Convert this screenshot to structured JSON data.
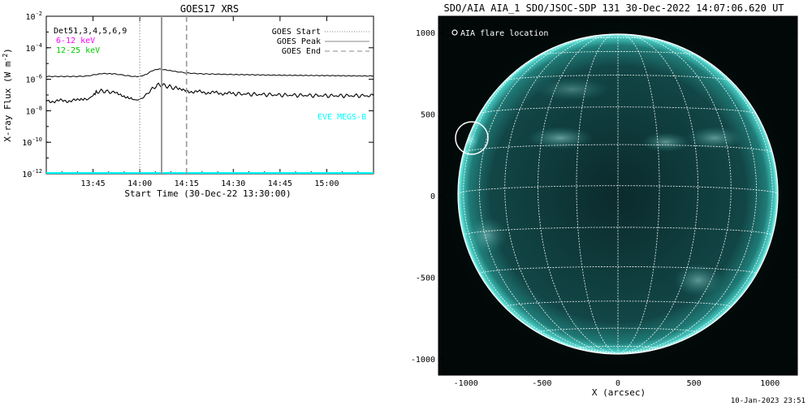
{
  "left_chart": {
    "title": "GOES17 XRS",
    "ylabel": "X-ray Flux (W m",
    "ylabel_sup": "-2",
    "ylabel_close": ")",
    "xlabel": "Start Time (30-Dec-22 13:30:00)",
    "ytick_base": "10",
    "y_exponents": [
      "-12",
      "-10",
      "-8",
      "-6",
      "-4",
      "-2"
    ],
    "xticks": [
      "13:45",
      "14:00",
      "14:15",
      "14:30",
      "14:45",
      "15:00"
    ],
    "detector_label": "Det51,3,4,5,6,9",
    "energy_labels": [
      {
        "text": "6-12 keV",
        "color": "#ff00ff"
      },
      {
        "text": "12-25 keV",
        "color": "#00c800"
      }
    ],
    "legend": [
      "GOES Start",
      "GOES Peak",
      "GOES End"
    ],
    "eve_label": "EVE MEGS-B",
    "eve_color": "#00ffff",
    "markers": {
      "start": "14:00",
      "peak": "14:07",
      "end": "14:15"
    }
  },
  "chart_data": [
    {
      "type": "line",
      "title": "GOES17 XRS",
      "xlabel": "Start Time (30-Dec-22 13:30:00)",
      "ylabel": "X-ray Flux (W m^-2)",
      "yscale": "log",
      "ylim": [
        1e-12,
        0.01
      ],
      "xlim": [
        "13:30",
        "15:15"
      ],
      "series": [
        {
          "name": "",
          "x": [
            "13:30",
            "13:40",
            "13:43",
            "13:46",
            "13:48",
            "13:52",
            "13:55",
            "13:58",
            "14:00",
            "14:02",
            "14:04",
            "14:06",
            "14:08",
            "14:12",
            "14:15",
            "14:20",
            "14:30",
            "14:45",
            "15:00",
            "15:15"
          ],
          "values": [
            1.5e-06,
            1.5e-06,
            1.6e-06,
            2e-06,
            2.3e-06,
            2.2e-06,
            1.8e-06,
            1.5e-06,
            1.5e-06,
            2e-06,
            3.5e-06,
            4.5e-06,
            4e-06,
            3e-06,
            2.5e-06,
            2.2e-06,
            2e-06,
            1.8e-06,
            1.7e-06,
            1.6e-06
          ]
        },
        {
          "name": "",
          "x": [
            "13:30",
            "13:40",
            "13:43",
            "13:45",
            "13:46",
            "13:48",
            "13:52",
            "13:55",
            "13:58",
            "14:00",
            "14:02",
            "14:04",
            "14:06",
            "14:08",
            "14:12",
            "14:15",
            "14:20",
            "14:30",
            "14:45",
            "15:00",
            "15:15"
          ],
          "values": [
            4e-08,
            4.5e-08,
            5e-08,
            9e-08,
            1.6e-07,
            1.8e-07,
            1.4e-07,
            7e-08,
            5e-08,
            5e-08,
            1e-07,
            2.5e-07,
            4.5e-07,
            4e-07,
            2.5e-07,
            1.8e-07,
            1.5e-07,
            1.2e-07,
            1e-07,
            9e-08,
            9e-08
          ]
        },
        {
          "name": "EVE MEGS-B",
          "x": [
            "13:30",
            "15:15"
          ],
          "values": [
            1e-12,
            1e-12
          ]
        }
      ],
      "vlines": [
        {
          "name": "GOES Start",
          "x": "14:00",
          "style": "dotted"
        },
        {
          "name": "GOES Peak",
          "x": "14:07",
          "style": "solid"
        },
        {
          "name": "GOES End",
          "x": "14:15",
          "style": "dashed"
        }
      ]
    },
    {
      "type": "image",
      "title": "SDO/AIA AIA_1 SDO/JSOC-SDP 131 30-Dec-2022 14:07:06.620 UT",
      "xlabel": "X (arcsec)",
      "ylabel": "",
      "xlim": [
        -1180,
        1180
      ],
      "ylim": [
        -1100,
        1100
      ],
      "xticks": [
        "-1000",
        "-500",
        "0",
        "500",
        "1000"
      ],
      "yticks": [
        "-1000",
        "-500",
        "0",
        "500",
        "1000"
      ],
      "grid": true,
      "flare_location": {
        "x": -900,
        "y": 350,
        "radius": 100
      }
    }
  ],
  "right_image": {
    "title": "SDO/AIA AIA_1 SDO/JSOC-SDP 131 30-Dec-2022 14:07:06.620 UT",
    "xlabel": "X (arcsec)",
    "xticks": [
      "-1000",
      "-500",
      "0",
      "500",
      "1000"
    ],
    "yticks": [
      "1000",
      "500",
      "0",
      "-500",
      "-1000"
    ],
    "legend": "AIA flare location",
    "disk_color": "#0e3c3c",
    "limb_color": "#5fe0d8",
    "grid_color": "#ffffff"
  },
  "footer_date": "10-Jan-2023 23:51"
}
